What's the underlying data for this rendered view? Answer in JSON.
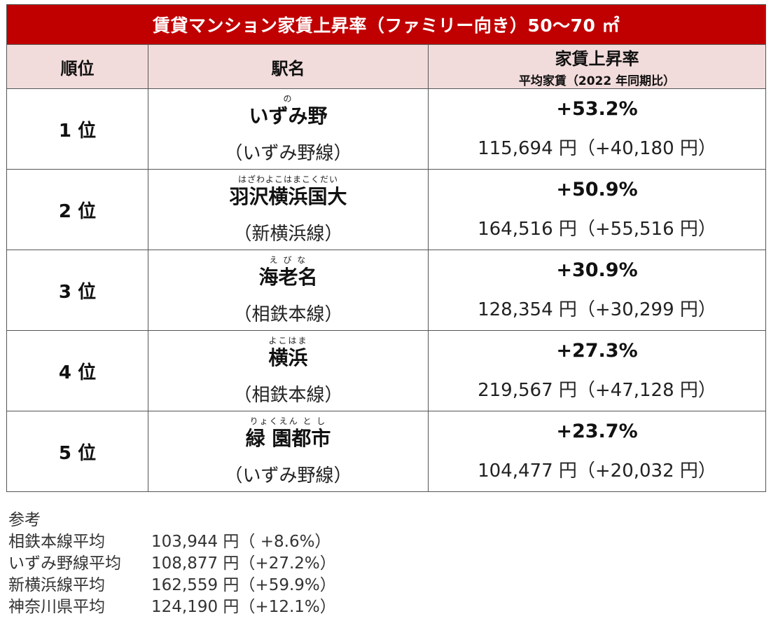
{
  "title": "賃貸マンション家賃上昇率（ファミリー向き）50〜70 ㎡",
  "headers": {
    "rank": "順位",
    "station": "駅名",
    "rate_main": "家賃上昇率",
    "rate_sub": "平均家賃（2022 年同期比）"
  },
  "rows": [
    {
      "rank": "1 位",
      "ruby": "の",
      "station": "いずみ野",
      "line": "（いずみ野線）",
      "rate": "+53.2%",
      "rent": "115,694 円（+40,180 円）"
    },
    {
      "rank": "2 位",
      "ruby": "はざわよこはまこくだい",
      "station": "羽沢横浜国大",
      "line": "（新横浜線）",
      "rate": "+50.9%",
      "rent": "164,516 円（+55,516 円）"
    },
    {
      "rank": "3 位",
      "ruby": "え び な",
      "station": "海老名",
      "line": "（相鉄本線）",
      "rate": "+30.9%",
      "rent": "128,354 円（+30,299 円）"
    },
    {
      "rank": "4 位",
      "ruby": "よこはま",
      "station": "横浜",
      "line": "（相鉄本線）",
      "rate": "+27.3%",
      "rent": "219,567 円（+47,128 円）"
    },
    {
      "rank": "5 位",
      "ruby": "りょくえん と し",
      "station": "緑 園都市",
      "line": "（いずみ野線）",
      "rate": "+23.7%",
      "rent": "104,477 円（+20,032 円）"
    }
  ],
  "notes": {
    "title": "参考",
    "items": [
      {
        "label": "相鉄本線平均",
        "value": "103,944 円（ +8.6%）"
      },
      {
        "label": "いずみ野線平均",
        "value": "108,877 円（+27.2%）"
      },
      {
        "label": "新横浜線平均",
        "value": "162,559 円（+59.9%）"
      },
      {
        "label": "神奈川県平均",
        "value": "124,190 円（+12.1%）"
      }
    ]
  },
  "colors": {
    "title_bg": "#c00000",
    "header_bg": "#f2dcdb",
    "border": "#555555"
  }
}
